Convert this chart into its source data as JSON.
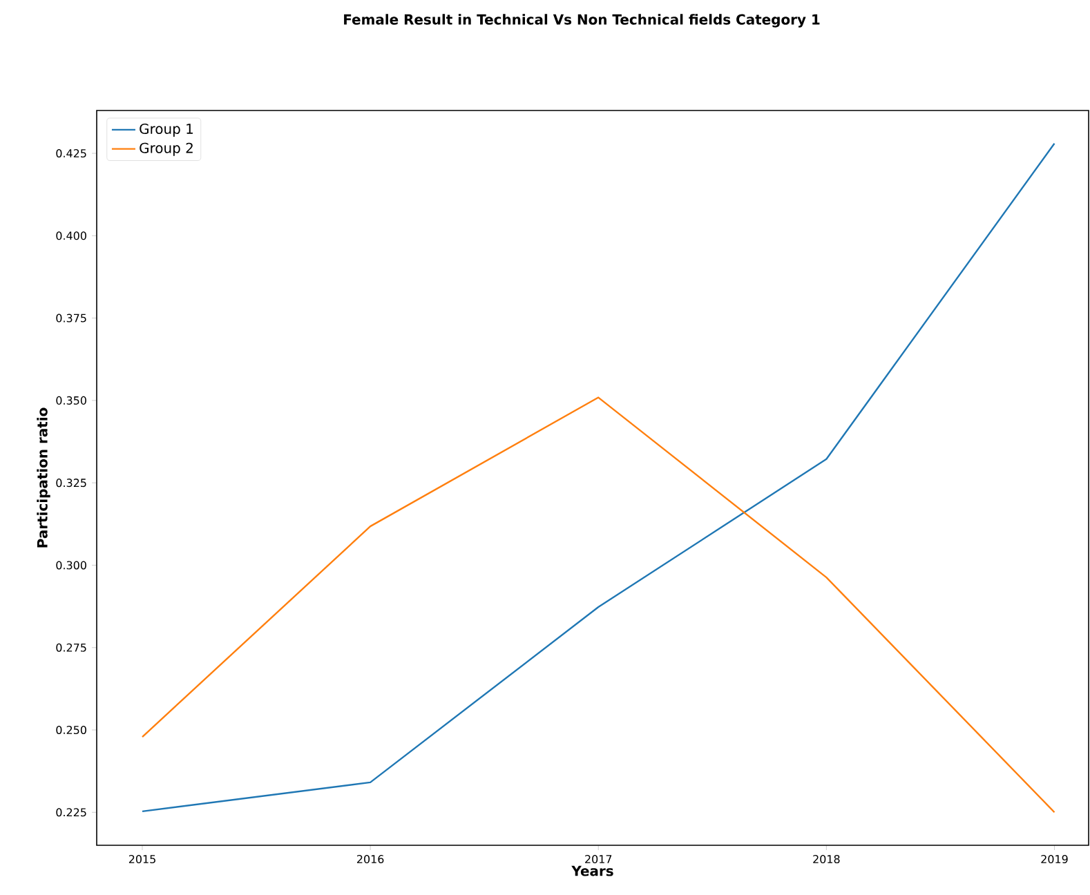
{
  "chart_data": {
    "type": "line",
    "title": "Female Result in Technical Vs Non Technical fields Category 1",
    "xlabel": "Years",
    "ylabel": "Participation ratio",
    "x": [
      2015,
      2016,
      2017,
      2018,
      2019
    ],
    "series": [
      {
        "name": "Group 1",
        "color": "#1f77b4",
        "values": [
          0.2253,
          0.2341,
          0.2873,
          0.3322,
          0.428
        ]
      },
      {
        "name": "Group 2",
        "color": "#ff7f0e",
        "values": [
          0.2479,
          0.3118,
          0.3509,
          0.2963,
          0.225
        ]
      }
    ],
    "xlim": [
      2014.8,
      2019.15
    ],
    "xticks": [
      2015,
      2016,
      2017,
      2018,
      2019
    ],
    "ylim": [
      0.215,
      0.438
    ],
    "yticks": [
      {
        "value": 0.225,
        "label": "0.225"
      },
      {
        "value": 0.25,
        "label": "0.250"
      },
      {
        "value": 0.275,
        "label": "0.275"
      },
      {
        "value": 0.3,
        "label": "0.300"
      },
      {
        "value": 0.325,
        "label": "0.325"
      },
      {
        "value": 0.35,
        "label": "0.350"
      },
      {
        "value": 0.375,
        "label": "0.375"
      },
      {
        "value": 0.4,
        "label": "0.400"
      },
      {
        "value": 0.425,
        "label": "0.425"
      }
    ],
    "legend": "top left",
    "grid": false,
    "marker": "none",
    "line_style": "solid"
  }
}
